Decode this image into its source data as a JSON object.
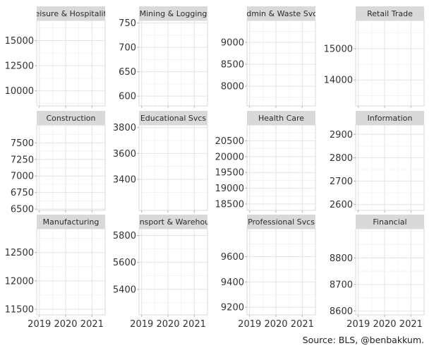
{
  "source": "Source: BLS, @benbakkum.",
  "chart_data": {
    "type": "line",
    "layout": "facet-grid 3x4",
    "x_tick_labels": [
      "2019",
      "2020",
      "2021"
    ],
    "x_range": [
      2018.9,
      2021.5
    ],
    "grid": true,
    "panels": [
      {
        "title": "Leisure & Hospitality",
        "yticks": [
          10000,
          12500,
          15000
        ],
        "ylim": [
          8500,
          17000
        ]
      },
      {
        "title": "Mining & Logging",
        "yticks": [
          600,
          650,
          700,
          750
        ],
        "ylim": [
          580,
          755
        ]
      },
      {
        "title": "Admin & Waste Svcs",
        "yticks": [
          8000,
          8500,
          9000
        ],
        "ylim": [
          7550,
          9500
        ]
      },
      {
        "title": "Retail Trade",
        "yticks": [
          14000,
          15000
        ],
        "ylim": [
          13170,
          15900
        ]
      },
      {
        "title": "Construction",
        "yticks": [
          6500,
          6750,
          7000,
          7250,
          7500
        ],
        "ylim": [
          6480,
          7770
        ]
      },
      {
        "title": "Educational Svcs",
        "yticks": [
          3400,
          3600,
          3800
        ],
        "ylim": [
          3160,
          3820
        ]
      },
      {
        "title": "Health Care",
        "yticks": [
          18500,
          19000,
          19500,
          20000,
          20500
        ],
        "ylim": [
          18300,
          21000
        ]
      },
      {
        "title": "Information",
        "yticks": [
          2600,
          2700,
          2800,
          2900
        ],
        "ylim": [
          2575,
          2940
        ]
      },
      {
        "title": "Manufacturing",
        "yticks": [
          11500,
          12000,
          12500
        ],
        "ylim": [
          11400,
          12920
        ]
      },
      {
        "title": "Transport & Warehouse",
        "yticks": [
          5400,
          5600,
          5800
        ],
        "ylim": [
          5210,
          5850
        ]
      },
      {
        "title": "Professional Svcs",
        "yticks": [
          9200,
          9400,
          9600
        ],
        "ylim": [
          9140,
          9820
        ]
      },
      {
        "title": "Financial",
        "yticks": [
          8600,
          8700,
          8800
        ],
        "ylim": [
          8585,
          8910
        ]
      }
    ]
  }
}
